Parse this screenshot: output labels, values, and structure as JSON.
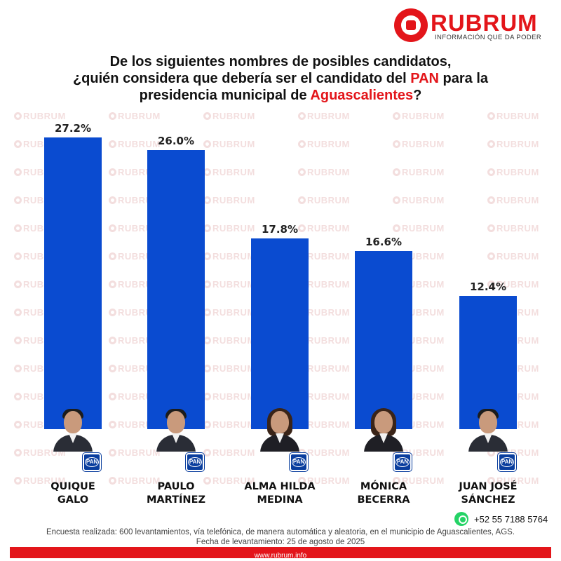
{
  "logo": {
    "word": "RUBRUM",
    "tagline": "INFORMACIÓN QUE DA PODER",
    "watermark_word": "RUBRUM"
  },
  "title": {
    "line1": "De los siguientes nombres de posibles candidatos,",
    "line2_pre": "¿quién considera que debería ser el candidato del ",
    "line2_highlight": "PAN",
    "line2_post": " para la",
    "line3_pre": "presidencia municipal de ",
    "line3_highlight": "Aguascalientes",
    "line3_post": "?"
  },
  "chart_data": {
    "type": "bar",
    "categories": [
      "QUIQUE GALO",
      "PAULO MARTÍNEZ",
      "ALMA HILDA MEDINA",
      "MÓNICA BECERRA",
      "JUAN JOSÉ SÁNCHEZ"
    ],
    "values": [
      27.2,
      26.0,
      17.8,
      16.6,
      12.4
    ],
    "data_labels": [
      "27.2%",
      "26.0%",
      "17.8%",
      "16.6%",
      "12.4%"
    ],
    "ylim": [
      0,
      27.2
    ],
    "grid": false,
    "legend": "none",
    "bar_color": "#0a4bd0"
  },
  "candidates": [
    {
      "name_line1": "QUIQUE",
      "name_line2": "GALO",
      "party_badge": "PAN",
      "photo": "male"
    },
    {
      "name_line1": "PAULO",
      "name_line2": "MARTÍNEZ",
      "party_badge": "PAN",
      "photo": "male"
    },
    {
      "name_line1": "ALMA HILDA",
      "name_line2": "MEDINA",
      "party_badge": "PAN",
      "photo": "female"
    },
    {
      "name_line1": "MÓNICA",
      "name_line2": "BECERRA",
      "party_badge": "PAN",
      "photo": "female"
    },
    {
      "name_line1": "JUAN JOSÉ",
      "name_line2": "SÁNCHEZ",
      "party_badge": "PAN",
      "photo": "male"
    }
  ],
  "contact": {
    "icon": "whatsapp-icon",
    "phone": "+52 55 7188 5764"
  },
  "footnote": {
    "line1": "Encuesta realizada: 600 levantamientos, vía telefónica, de manera automática y aleatoria, en el municipio de Aguascalientes, AGS.",
    "line2": "Fecha de levantamiento: 25 de agosto de 2025"
  },
  "footer": {
    "url": "www.rubrum.info"
  },
  "colors": {
    "accent_red": "#e3151a",
    "bar_blue": "#0a4bd0",
    "pan_blue": "#0a3e9e"
  }
}
